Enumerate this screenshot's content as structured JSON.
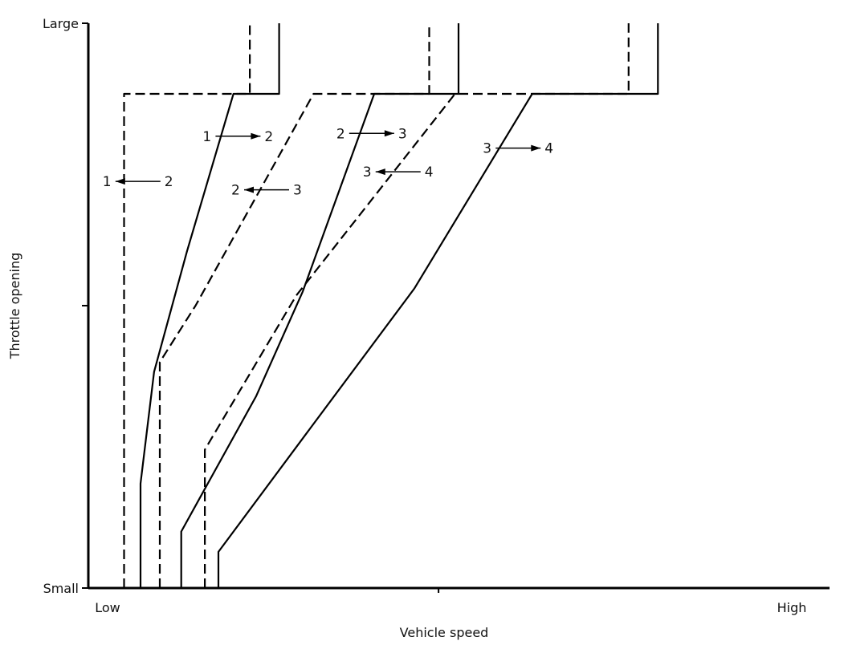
{
  "chart_data": {
    "type": "line",
    "xlabel": "Vehicle speed",
    "ylabel": "Throttle opening",
    "x_ticks": [
      {
        "value": 0,
        "label": "Low"
      },
      {
        "value": 100,
        "label": "High"
      }
    ],
    "y_ticks": [
      {
        "value": 0,
        "label": "Small"
      },
      {
        "value": 50,
        "label": ""
      },
      {
        "value": 100,
        "label": "Large"
      }
    ],
    "xlim": [
      0,
      100
    ],
    "ylim": [
      0,
      100
    ],
    "grid": false,
    "legend": "none",
    "series": [
      {
        "style": "dashed",
        "label": {
          "from": "1",
          "to": "2",
          "arrow": "left",
          "x": 2,
          "y": 72
        },
        "points": [
          [
            5,
            0
          ],
          [
            5,
            87.5
          ],
          [
            22.6,
            87.5
          ],
          [
            22.6,
            100
          ]
        ]
      },
      {
        "style": "solid",
        "label": {
          "from": "1",
          "to": "2",
          "arrow": "right",
          "x": 16,
          "y": 80
        },
        "points": [
          [
            7.3,
            0
          ],
          [
            7.3,
            18.5
          ],
          [
            9.2,
            38.3
          ],
          [
            13.8,
            59.6
          ],
          [
            20.3,
            87.5
          ],
          [
            26.7,
            87.5
          ],
          [
            26.7,
            100
          ]
        ]
      },
      {
        "style": "dashed",
        "label": {
          "from": "2",
          "to": "3",
          "arrow": "left",
          "x": 20,
          "y": 70.5
        },
        "points": [
          [
            10,
            0
          ],
          [
            10,
            40
          ],
          [
            15,
            50
          ],
          [
            31.5,
            87.5
          ],
          [
            47.7,
            87.5
          ],
          [
            47.7,
            100
          ]
        ]
      },
      {
        "style": "solid",
        "label": {
          "from": "2",
          "to": "3",
          "arrow": "right",
          "x": 34.7,
          "y": 80.5
        },
        "points": [
          [
            13,
            0
          ],
          [
            13,
            10
          ],
          [
            23.5,
            34
          ],
          [
            30,
            52.5
          ],
          [
            40,
            87.5
          ],
          [
            51.8,
            87.5
          ],
          [
            51.8,
            100
          ]
        ]
      },
      {
        "style": "dashed",
        "label": {
          "from": "3",
          "to": "4",
          "arrow": "left",
          "x": 38.4,
          "y": 73.7
        },
        "points": [
          [
            16.3,
            0
          ],
          [
            16.3,
            24.5
          ],
          [
            29.1,
            51.8
          ],
          [
            51.3,
            87.5
          ],
          [
            75.6,
            87.5
          ],
          [
            75.6,
            100
          ]
        ]
      },
      {
        "style": "solid",
        "label": {
          "from": "3",
          "to": "4",
          "arrow": "right",
          "x": 55.2,
          "y": 77.9
        },
        "points": [
          [
            18.2,
            0
          ],
          [
            18.2,
            6.4
          ],
          [
            31,
            28.2
          ],
          [
            45.6,
            53
          ],
          [
            62.1,
            87.5
          ],
          [
            79.7,
            87.5
          ],
          [
            79.7,
            100
          ]
        ]
      }
    ]
  }
}
